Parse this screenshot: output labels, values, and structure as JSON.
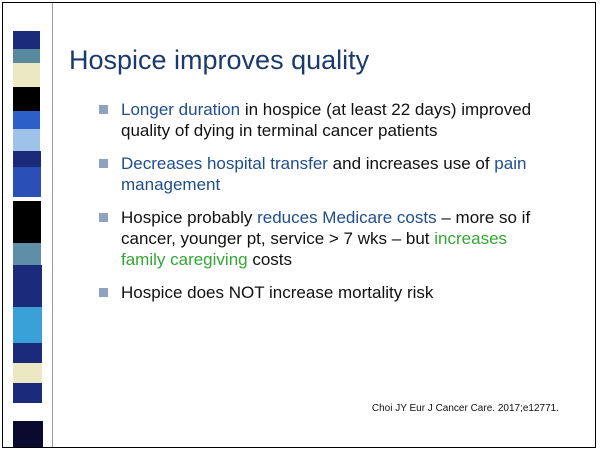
{
  "title": "Hospice improves quality",
  "bullets": [
    [
      "Longer duration",
      "in hospice (at least 22 days) improved quality of dying in terminal cancer patients"
    ],
    [
      "Decreases hospital transfer",
      "and increases use of",
      "pain management"
    ],
    [
      "Hospice probably",
      "reduces Medicare costs",
      "– more so if cancer, younger pt, service > 7 wks – but",
      "increases family caregiving",
      "costs"
    ],
    [
      "Hospice does NOT increase mortality risk"
    ]
  ],
  "citation": "Choi JY Eur J Cancer Care. 2017;e12771."
}
